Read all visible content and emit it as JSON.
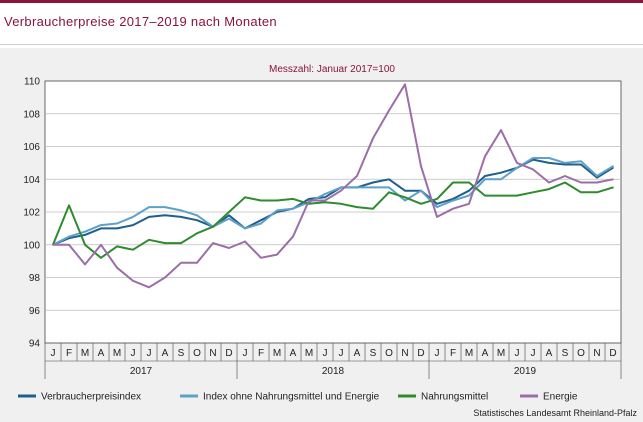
{
  "header": {
    "title": "Verbraucherpreise 2017–2019 nach Monaten"
  },
  "footer": {
    "source": "Statistisches Landesamt Rheinland-Pfalz"
  },
  "chart_data": {
    "type": "line",
    "subtitle": "Messzahl: Januar 2017=100",
    "ylim": [
      94,
      110
    ],
    "yticks": [
      94,
      96,
      98,
      100,
      102,
      104,
      106,
      108,
      110
    ],
    "grid": true,
    "legend_position": "bottom",
    "month_labels": [
      "J",
      "F",
      "M",
      "A",
      "M",
      "J",
      "J",
      "A",
      "S",
      "O",
      "N",
      "D",
      "J",
      "F",
      "M",
      "A",
      "M",
      "J",
      "J",
      "A",
      "S",
      "O",
      "N",
      "D",
      "J",
      "F",
      "M",
      "A",
      "M",
      "J",
      "J",
      "A",
      "S",
      "O",
      "N",
      "D"
    ],
    "years": [
      "2017",
      "2018",
      "2019"
    ],
    "series": [
      {
        "name": "Verbraucherpreisindex",
        "color": "#1f5f8b",
        "values": [
          100.0,
          100.4,
          100.6,
          101.0,
          101.0,
          101.2,
          101.7,
          101.8,
          101.7,
          101.5,
          101.1,
          101.8,
          101.0,
          101.5,
          102.0,
          102.2,
          102.8,
          102.9,
          103.5,
          103.5,
          103.8,
          104.0,
          103.3,
          103.3,
          102.5,
          102.8,
          103.3,
          104.2,
          104.4,
          104.7,
          105.2,
          105.0,
          104.9,
          104.9,
          104.1,
          104.7
        ]
      },
      {
        "name": "Index ohne Nahrungsmittel und Energie",
        "color": "#5fa0c8",
        "values": [
          100.0,
          100.5,
          100.8,
          101.2,
          101.3,
          101.7,
          102.3,
          102.3,
          102.1,
          101.8,
          101.1,
          101.6,
          101.0,
          101.3,
          102.1,
          102.2,
          102.6,
          103.1,
          103.5,
          103.5,
          103.5,
          103.5,
          102.7,
          103.3,
          102.3,
          102.7,
          103.0,
          104.0,
          104.0,
          104.7,
          105.3,
          105.3,
          105.0,
          105.1,
          104.2,
          104.8
        ]
      },
      {
        "name": "Nahrungsmittel",
        "color": "#2e8b2e",
        "values": [
          100.0,
          102.4,
          100.0,
          99.2,
          99.9,
          99.7,
          100.3,
          100.1,
          100.1,
          100.7,
          101.1,
          102.0,
          102.9,
          102.7,
          102.7,
          102.8,
          102.5,
          102.6,
          102.5,
          102.3,
          102.2,
          103.2,
          102.9,
          102.5,
          102.8,
          103.8,
          103.8,
          103.0,
          103.0,
          103.0,
          103.2,
          103.4,
          103.8,
          103.2,
          103.2,
          103.5
        ]
      },
      {
        "name": "Energie",
        "color": "#9b6ea8",
        "values": [
          100.0,
          100.0,
          98.8,
          100.0,
          98.6,
          97.8,
          97.4,
          98.0,
          98.9,
          98.9,
          100.1,
          99.8,
          100.2,
          99.2,
          99.4,
          100.5,
          102.7,
          102.7,
          103.3,
          104.2,
          106.5,
          108.2,
          109.8,
          104.8,
          101.7,
          102.2,
          102.5,
          105.4,
          107.0,
          105.0,
          104.6,
          103.8,
          104.2,
          103.8,
          103.8,
          104.0
        ]
      }
    ]
  }
}
